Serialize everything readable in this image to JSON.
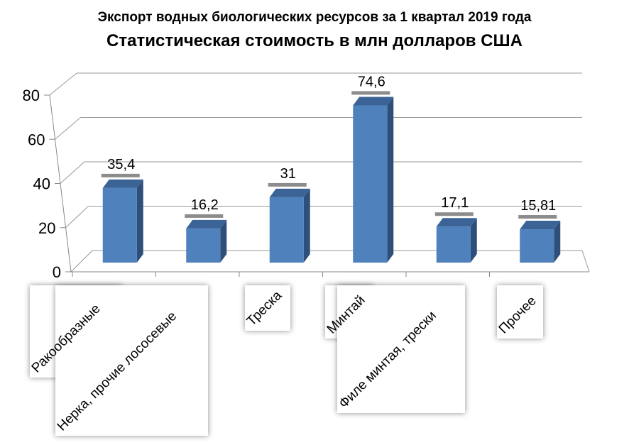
{
  "chart_data": {
    "type": "bar",
    "title": "Экспорт водных биологических ресурсов за 1 квартал 2019 года",
    "subtitle": "Статистическая стоимость в млн долларов США",
    "categories": [
      "Ракообразные",
      "Нерка, прочие лососевые",
      "Треска",
      "Минтай",
      "Филе минтая, трески",
      "Прочее"
    ],
    "values": [
      35.4,
      16.2,
      31,
      74.6,
      17.1,
      15.81
    ],
    "data_labels": [
      "35,4",
      "16,2",
      "31",
      "74,6",
      "17,1",
      "15,81"
    ],
    "yticks": [
      "0",
      "20",
      "40",
      "60",
      "80"
    ],
    "ylim": [
      0,
      80
    ],
    "grid": true,
    "style": "3d-column",
    "bar_color": "#4F81BD",
    "bar_top_color": "#3B6395",
    "bar_side_color": "#2E4F7A"
  }
}
